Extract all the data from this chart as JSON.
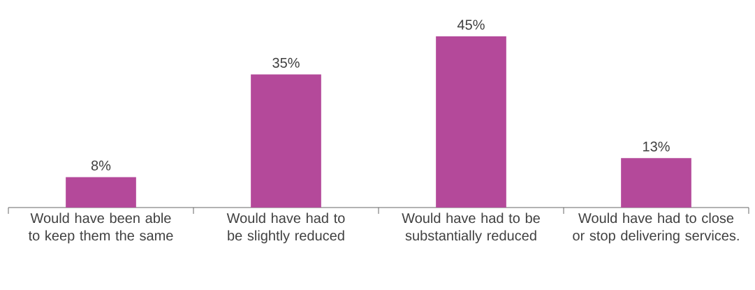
{
  "chart_data": {
    "type": "bar",
    "categories": [
      "Would have been able to keep them the same",
      "Would have had to be slightly reduced",
      "Would have had to be substantially reduced",
      "Would have had to close or stop delivering services."
    ],
    "values": [
      8,
      35,
      45,
      13
    ],
    "value_labels": [
      "8%",
      "35%",
      "45%",
      "13%"
    ],
    "color": "#b4499a"
  }
}
